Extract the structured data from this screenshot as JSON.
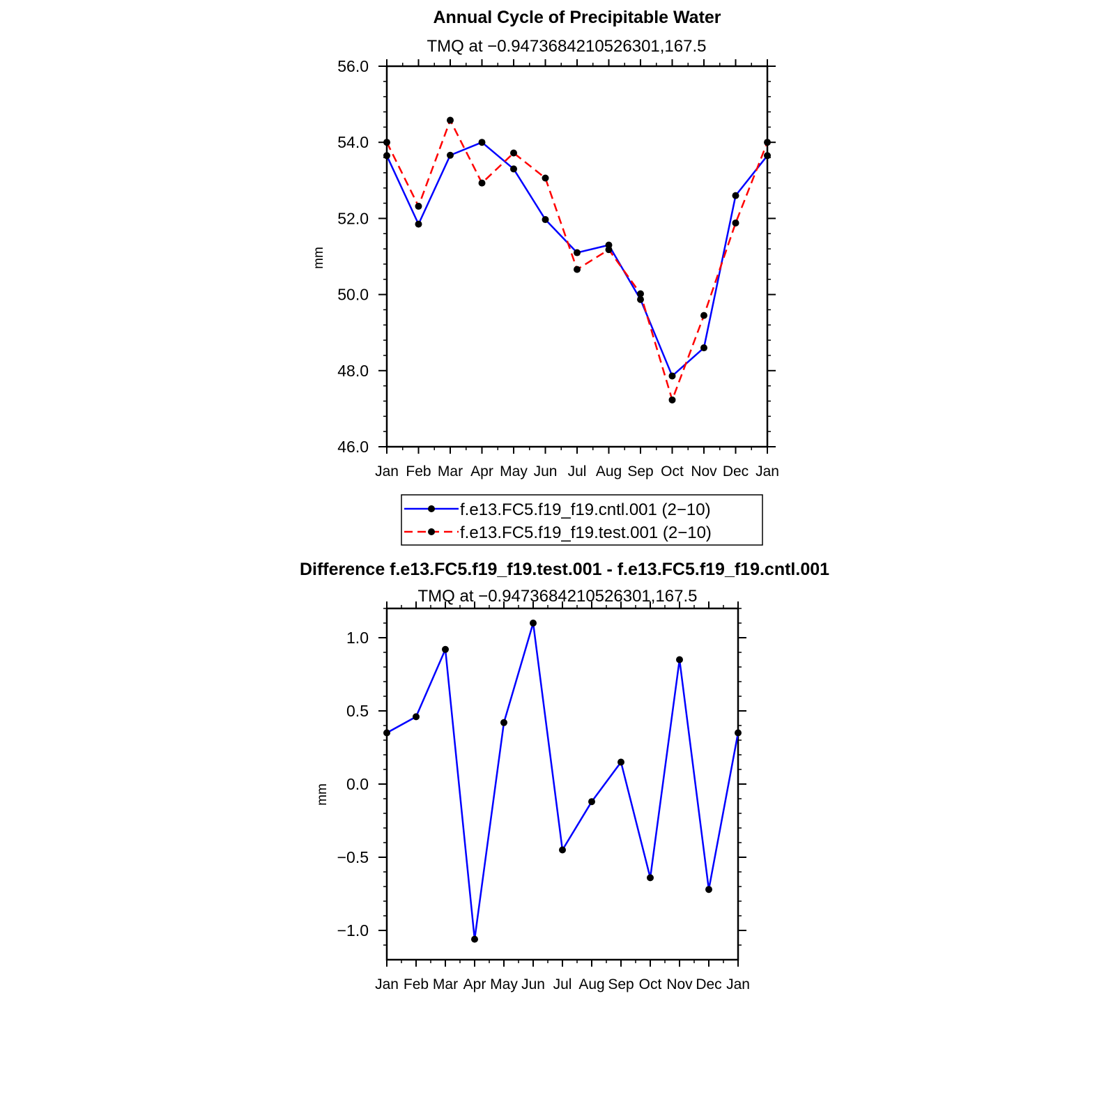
{
  "colors": {
    "cntl": "#0000ff",
    "test": "#ff0000",
    "marker": "#000000"
  },
  "chart_data": [
    {
      "type": "line",
      "title": "Annual Cycle of Precipitable Water",
      "subtitle": "TMQ at −0.9473684210526301,167.5",
      "xlabel": "",
      "ylabel": "mm",
      "ylim": [
        46.0,
        56.0
      ],
      "yticks": [
        "56.0",
        "54.0",
        "52.0",
        "50.0",
        "48.0",
        "46.0"
      ],
      "categories": [
        "Jan",
        "Feb",
        "Mar",
        "Apr",
        "May",
        "Jun",
        "Jul",
        "Aug",
        "Sep",
        "Oct",
        "Nov",
        "Dec",
        "Jan"
      ],
      "grid": false,
      "legend_position": "below",
      "series": [
        {
          "name": "f.e13.FC5.f19_f19.cntl.001 (2−10)",
          "line_style": "solid",
          "color": "#0000ff",
          "values": [
            53.65,
            51.85,
            53.66,
            54.0,
            53.3,
            51.97,
            51.1,
            51.3,
            49.87,
            47.86,
            48.6,
            52.6,
            53.65
          ]
        },
        {
          "name": "f.e13.FC5.f19_f19.test.001 (2−10)",
          "line_style": "dashed",
          "color": "#ff0000",
          "values": [
            54.0,
            52.32,
            54.58,
            52.93,
            53.72,
            53.06,
            50.66,
            51.18,
            50.02,
            47.23,
            49.45,
            51.88,
            54.0
          ]
        }
      ]
    },
    {
      "type": "line",
      "title": "Difference f.e13.FC5.f19_f19.test.001 - f.e13.FC5.f19_f19.cntl.001",
      "subtitle": "TMQ at −0.9473684210526301,167.5",
      "xlabel": "",
      "ylabel": "mm",
      "ylim": [
        -1.2,
        1.2
      ],
      "yticks": [
        "1.0",
        "0.5",
        "0.0",
        "−0.5",
        "−1.0"
      ],
      "categories": [
        "Jan",
        "Feb",
        "Mar",
        "Apr",
        "May",
        "Jun",
        "Jul",
        "Aug",
        "Sep",
        "Oct",
        "Nov",
        "Dec",
        "Jan"
      ],
      "grid": false,
      "series": [
        {
          "line_style": "solid",
          "color": "#0000ff",
          "values": [
            0.35,
            0.46,
            0.92,
            -1.06,
            0.42,
            1.1,
            -0.45,
            -0.12,
            0.15,
            -0.64,
            0.85,
            -0.72,
            0.35
          ]
        }
      ]
    }
  ]
}
